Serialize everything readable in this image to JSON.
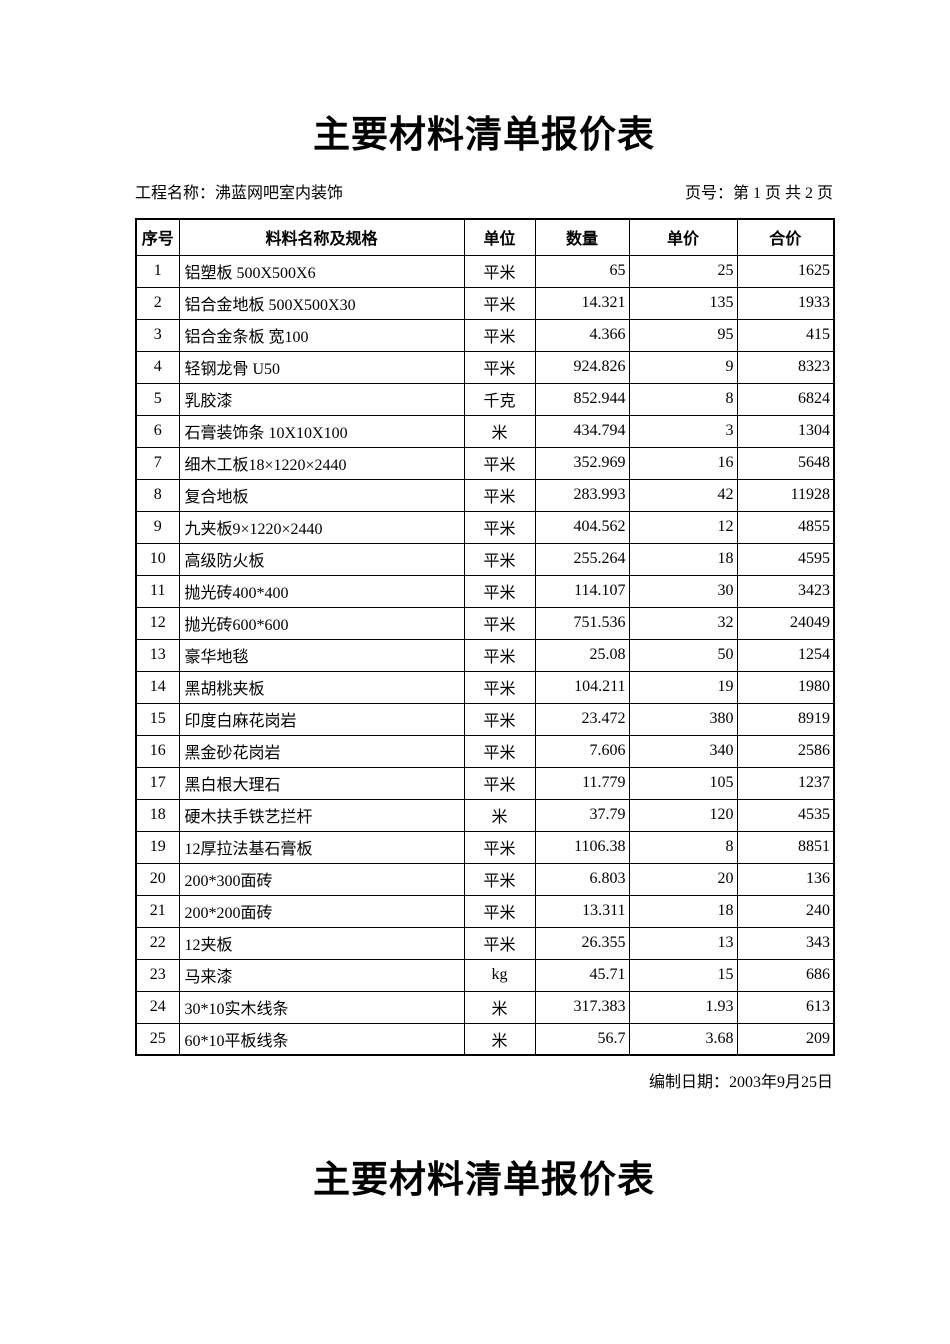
{
  "page": {
    "title": "主要材料清单报价表",
    "second_page_title": "主要材料清单报价表",
    "footer_date": "编制日期：2003年9月25日"
  },
  "header": {
    "project_label": "工程名称：",
    "project_name": "沸蓝网吧室内装饰",
    "page_number_label": "页号：第 1 页 共 2 页"
  },
  "colors": {
    "text": "#000000",
    "background": "#ffffff",
    "table_border": "#000000"
  },
  "table": {
    "columns": [
      "序号",
      "料料名称及规格",
      "单位",
      "数量",
      "单价",
      "合价"
    ],
    "rows": [
      [
        "1",
        "铝塑板 500X500X6",
        "平米",
        "65",
        "25",
        "1625"
      ],
      [
        "2",
        "铝合金地板 500X500X30",
        "平米",
        "14.321",
        "135",
        "1933"
      ],
      [
        "3",
        "铝合金条板 宽100",
        "平米",
        "4.366",
        "95",
        "415"
      ],
      [
        "4",
        "轻钢龙骨 U50",
        "平米",
        "924.826",
        "9",
        "8323"
      ],
      [
        "5",
        "乳胶漆",
        "千克",
        "852.944",
        "8",
        "6824"
      ],
      [
        "6",
        "石膏装饰条 10X10X100",
        "米",
        "434.794",
        "3",
        "1304"
      ],
      [
        "7",
        "细木工板18×1220×2440",
        "平米",
        "352.969",
        "16",
        "5648"
      ],
      [
        "8",
        "复合地板",
        "平米",
        "283.993",
        "42",
        "11928"
      ],
      [
        "9",
        "九夹板9×1220×2440",
        "平米",
        "404.562",
        "12",
        "4855"
      ],
      [
        "10",
        "高级防火板",
        "平米",
        "255.264",
        "18",
        "4595"
      ],
      [
        "11",
        "抛光砖400*400",
        "平米",
        "114.107",
        "30",
        "3423"
      ],
      [
        "12",
        "抛光砖600*600",
        "平米",
        "751.536",
        "32",
        "24049"
      ],
      [
        "13",
        "豪华地毯",
        "平米",
        "25.08",
        "50",
        "1254"
      ],
      [
        "14",
        "黑胡桃夹板",
        "平米",
        "104.211",
        "19",
        "1980"
      ],
      [
        "15",
        "印度白麻花岗岩",
        "平米",
        "23.472",
        "380",
        "8919"
      ],
      [
        "16",
        "黑金砂花岗岩",
        "平米",
        "7.606",
        "340",
        "2586"
      ],
      [
        "17",
        "黑白根大理石",
        "平米",
        "11.779",
        "105",
        "1237"
      ],
      [
        "18",
        "硬木扶手铁艺拦杆",
        "米",
        "37.79",
        "120",
        "4535"
      ],
      [
        "19",
        "12厚拉法基石膏板",
        "平米",
        "1106.38",
        "8",
        "8851"
      ],
      [
        "20",
        "200*300面砖",
        "平米",
        "6.803",
        "20",
        "136"
      ],
      [
        "21",
        "200*200面砖",
        "平米",
        "13.311",
        "18",
        "240"
      ],
      [
        "22",
        "12夹板",
        "平米",
        "26.355",
        "13",
        "343"
      ],
      [
        "23",
        "马来漆",
        "kg",
        "45.71",
        "15",
        "686"
      ],
      [
        "24",
        "30*10实木线条",
        "米",
        "317.383",
        "1.93",
        "613"
      ],
      [
        "25",
        "60*10平板线条",
        "米",
        "56.7",
        "3.68",
        "209"
      ]
    ]
  }
}
